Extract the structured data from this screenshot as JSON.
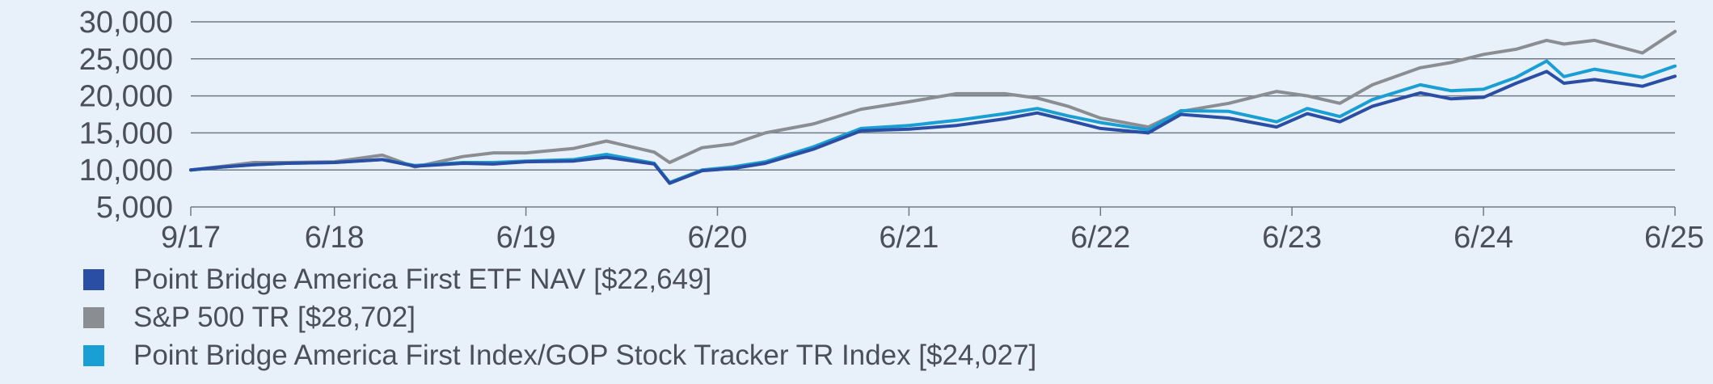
{
  "chart_data": {
    "type": "line",
    "title": "",
    "xlabel": "",
    "ylabel": "",
    "x_range": [
      2017.75,
      2025.5
    ],
    "ylim": [
      5000,
      30000
    ],
    "y_ticks": [
      {
        "value": 5000,
        "label": "5,000"
      },
      {
        "value": 10000,
        "label": "10,000"
      },
      {
        "value": 15000,
        "label": "15,000"
      },
      {
        "value": 20000,
        "label": "20,000"
      },
      {
        "value": 25000,
        "label": "25,000"
      },
      {
        "value": 30000,
        "label": "30,000"
      }
    ],
    "x_ticks": [
      {
        "value": 2017.75,
        "label": "9/17"
      },
      {
        "value": 2018.5,
        "label": "6/18"
      },
      {
        "value": 2019.5,
        "label": "6/19"
      },
      {
        "value": 2020.5,
        "label": "6/20"
      },
      {
        "value": 2021.5,
        "label": "6/21"
      },
      {
        "value": 2022.5,
        "label": "6/22"
      },
      {
        "value": 2023.5,
        "label": "6/23"
      },
      {
        "value": 2024.5,
        "label": "6/24"
      },
      {
        "value": 2025.5,
        "label": "6/25"
      }
    ],
    "grid": true,
    "legend_position": "bottom",
    "series": [
      {
        "name": "Point Bridge America First ETF NAV [$22,649]",
        "color": "#2a4ea3",
        "points": [
          [
            2017.75,
            10000
          ],
          [
            2017.92,
            10400
          ],
          [
            2018.08,
            10700
          ],
          [
            2018.25,
            10900
          ],
          [
            2018.5,
            11000
          ],
          [
            2018.75,
            11400
          ],
          [
            2018.92,
            10500
          ],
          [
            2019.17,
            10900
          ],
          [
            2019.33,
            10800
          ],
          [
            2019.5,
            11100
          ],
          [
            2019.75,
            11200
          ],
          [
            2019.92,
            11700
          ],
          [
            2020.17,
            10800
          ],
          [
            2020.25,
            8200
          ],
          [
            2020.42,
            9900
          ],
          [
            2020.58,
            10200
          ],
          [
            2020.75,
            10900
          ],
          [
            2021.0,
            12800
          ],
          [
            2021.25,
            15300
          ],
          [
            2021.5,
            15500
          ],
          [
            2021.75,
            16000
          ],
          [
            2022.0,
            16900
          ],
          [
            2022.17,
            17700
          ],
          [
            2022.33,
            16700
          ],
          [
            2022.5,
            15600
          ],
          [
            2022.75,
            15000
          ],
          [
            2022.92,
            17500
          ],
          [
            2023.17,
            17000
          ],
          [
            2023.42,
            15800
          ],
          [
            2023.58,
            17600
          ],
          [
            2023.75,
            16500
          ],
          [
            2023.92,
            18600
          ],
          [
            2024.17,
            20400
          ],
          [
            2024.33,
            19600
          ],
          [
            2024.5,
            19800
          ],
          [
            2024.67,
            21700
          ],
          [
            2024.83,
            23300
          ],
          [
            2024.92,
            21700
          ],
          [
            2025.08,
            22200
          ],
          [
            2025.33,
            21300
          ],
          [
            2025.5,
            22649
          ]
        ]
      },
      {
        "name": "S&P 500 TR [$28,702]",
        "color": "#8a8d91",
        "points": [
          [
            2017.75,
            10000
          ],
          [
            2017.92,
            10500
          ],
          [
            2018.08,
            11000
          ],
          [
            2018.25,
            11000
          ],
          [
            2018.5,
            11100
          ],
          [
            2018.75,
            12000
          ],
          [
            2018.92,
            10400
          ],
          [
            2019.17,
            11800
          ],
          [
            2019.33,
            12300
          ],
          [
            2019.5,
            12300
          ],
          [
            2019.75,
            12900
          ],
          [
            2019.92,
            13900
          ],
          [
            2020.17,
            12400
          ],
          [
            2020.25,
            11000
          ],
          [
            2020.42,
            13000
          ],
          [
            2020.58,
            13500
          ],
          [
            2020.75,
            15000
          ],
          [
            2021.0,
            16200
          ],
          [
            2021.25,
            18200
          ],
          [
            2021.5,
            19200
          ],
          [
            2021.75,
            20300
          ],
          [
            2022.0,
            20300
          ],
          [
            2022.17,
            19700
          ],
          [
            2022.33,
            18600
          ],
          [
            2022.5,
            17000
          ],
          [
            2022.75,
            15800
          ],
          [
            2022.92,
            17900
          ],
          [
            2023.17,
            19000
          ],
          [
            2023.42,
            20600
          ],
          [
            2023.58,
            20000
          ],
          [
            2023.75,
            19000
          ],
          [
            2023.92,
            21500
          ],
          [
            2024.17,
            23800
          ],
          [
            2024.33,
            24500
          ],
          [
            2024.5,
            25600
          ],
          [
            2024.67,
            26300
          ],
          [
            2024.83,
            27500
          ],
          [
            2024.92,
            27000
          ],
          [
            2025.08,
            27500
          ],
          [
            2025.33,
            25800
          ],
          [
            2025.5,
            28702
          ]
        ]
      },
      {
        "name": "Point Bridge America First Index/GOP Stock Tracker TR Index [$24,027]",
        "color": "#1a9fd4",
        "points": [
          [
            2017.75,
            10000
          ],
          [
            2017.92,
            10400
          ],
          [
            2018.08,
            10700
          ],
          [
            2018.25,
            10900
          ],
          [
            2018.5,
            11000
          ],
          [
            2018.75,
            11400
          ],
          [
            2018.92,
            10600
          ],
          [
            2019.17,
            11000
          ],
          [
            2019.33,
            11000
          ],
          [
            2019.5,
            11200
          ],
          [
            2019.75,
            11400
          ],
          [
            2019.92,
            12100
          ],
          [
            2020.17,
            10900
          ],
          [
            2020.25,
            8300
          ],
          [
            2020.42,
            10000
          ],
          [
            2020.58,
            10400
          ],
          [
            2020.75,
            11100
          ],
          [
            2021.0,
            13100
          ],
          [
            2021.25,
            15600
          ],
          [
            2021.5,
            16000
          ],
          [
            2021.75,
            16700
          ],
          [
            2022.0,
            17600
          ],
          [
            2022.17,
            18300
          ],
          [
            2022.33,
            17300
          ],
          [
            2022.5,
            16400
          ],
          [
            2022.75,
            15400
          ],
          [
            2022.92,
            18000
          ],
          [
            2023.17,
            17900
          ],
          [
            2023.42,
            16500
          ],
          [
            2023.58,
            18300
          ],
          [
            2023.75,
            17200
          ],
          [
            2023.92,
            19500
          ],
          [
            2024.17,
            21500
          ],
          [
            2024.33,
            20700
          ],
          [
            2024.5,
            20900
          ],
          [
            2024.67,
            22500
          ],
          [
            2024.83,
            24700
          ],
          [
            2024.92,
            22600
          ],
          [
            2025.08,
            23600
          ],
          [
            2025.33,
            22500
          ],
          [
            2025.5,
            24027
          ]
        ]
      }
    ]
  },
  "legend": [
    {
      "label": "Point Bridge America First ETF NAV [$22,649]",
      "color": "#2a4ea3"
    },
    {
      "label": "S&P 500 TR [$28,702]",
      "color": "#8a8d91"
    },
    {
      "label": "Point Bridge America First Index/GOP Stock Tracker TR Index [$24,027]",
      "color": "#1a9fd4"
    }
  ]
}
